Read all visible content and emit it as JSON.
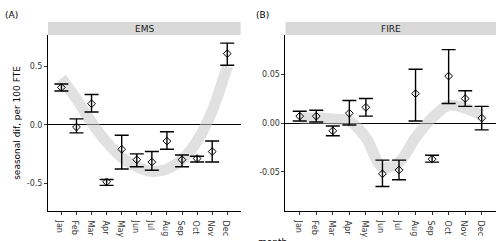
{
  "chart_data": [
    {
      "type": "scatter",
      "panel": "(A)",
      "title": "EMS",
      "x_label": "month",
      "y_label": "seasonal dif, per 100 FTE",
      "categories": [
        "Jan",
        "Feb",
        "Mar",
        "Apr",
        "May",
        "Jun",
        "Jul",
        "Aug",
        "Sep",
        "Oct",
        "Nov",
        "Dec"
      ],
      "values": [
        0.32,
        -0.02,
        0.18,
        -0.49,
        -0.21,
        -0.3,
        -0.32,
        -0.14,
        -0.3,
        -0.29,
        -0.23,
        0.61
      ],
      "lower": [
        0.29,
        -0.07,
        0.11,
        -0.52,
        -0.38,
        -0.36,
        -0.39,
        -0.21,
        -0.36,
        -0.32,
        -0.32,
        0.51
      ],
      "upper": [
        0.35,
        0.05,
        0.26,
        -0.47,
        -0.09,
        -0.25,
        -0.23,
        -0.06,
        -0.26,
        -0.27,
        -0.14,
        0.7
      ],
      "smooth": [
        0.4,
        0.22,
        0.02,
        -0.15,
        -0.28,
        -0.36,
        -0.4,
        -0.38,
        -0.3,
        -0.14,
        0.12,
        0.5
      ],
      "ylim": [
        -0.74,
        0.77
      ],
      "yticks": [
        {
          "value": -0.5,
          "label": "-0.5"
        },
        {
          "value": 0,
          "label": "0.0"
        },
        {
          "value": 0.5,
          "label": "0.5"
        }
      ],
      "marker": "diamond-open",
      "color": "#000000"
    },
    {
      "type": "scatter",
      "panel": "(B)",
      "title": "FIRE",
      "categories": [
        "Jan",
        "Feb",
        "Mar",
        "Apr",
        "May",
        "Jun",
        "Jul",
        "Aug",
        "Sep",
        "Oct",
        "Nov",
        "Dec"
      ],
      "values": [
        0.007,
        0.007,
        -0.008,
        0.01,
        0.016,
        -0.052,
        -0.048,
        0.03,
        -0.037,
        0.048,
        0.025,
        0.005
      ],
      "lower": [
        0.002,
        0.001,
        -0.013,
        -0.002,
        0.007,
        -0.065,
        -0.058,
        0.002,
        -0.04,
        0.02,
        0.017,
        -0.007
      ],
      "upper": [
        0.012,
        0.013,
        -0.003,
        0.023,
        0.025,
        -0.038,
        -0.038,
        0.055,
        -0.033,
        0.075,
        0.033,
        0.017
      ],
      "smooth": [
        0.005,
        0.005,
        0.004,
        0.002,
        -0.015,
        -0.045,
        -0.04,
        -0.015,
        0.005,
        0.018,
        0.015,
        0.008
      ],
      "ylim": [
        -0.09,
        0.09
      ],
      "yticks": [
        {
          "value": -0.05,
          "label": "-0.05"
        },
        {
          "value": 0,
          "label": "0.00"
        },
        {
          "value": 0.05,
          "label": "0.05"
        }
      ],
      "marker": "diamond-open",
      "color": "#000000"
    }
  ]
}
